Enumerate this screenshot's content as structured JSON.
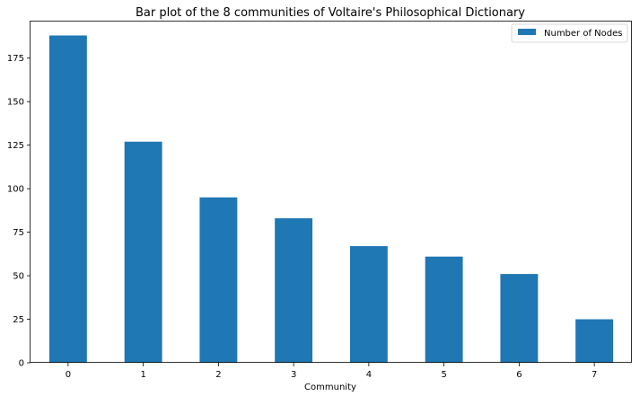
{
  "chart_data": {
    "type": "bar",
    "title": "Bar plot of the 8 communities of Voltaire's Philosophical Dictionary",
    "xlabel": "Community",
    "ylabel": "",
    "categories": [
      "0",
      "1",
      "2",
      "3",
      "4",
      "5",
      "6",
      "7"
    ],
    "series": [
      {
        "name": "Number of Nodes",
        "values": [
          188,
          127,
          95,
          83,
          67,
          61,
          51,
          25
        ]
      }
    ],
    "ylim": [
      0,
      196
    ],
    "yticks": [
      0,
      25,
      50,
      75,
      100,
      125,
      150,
      175
    ],
    "grid": false,
    "legend_position": "top-right",
    "bar_color": "#1f77b4"
  }
}
